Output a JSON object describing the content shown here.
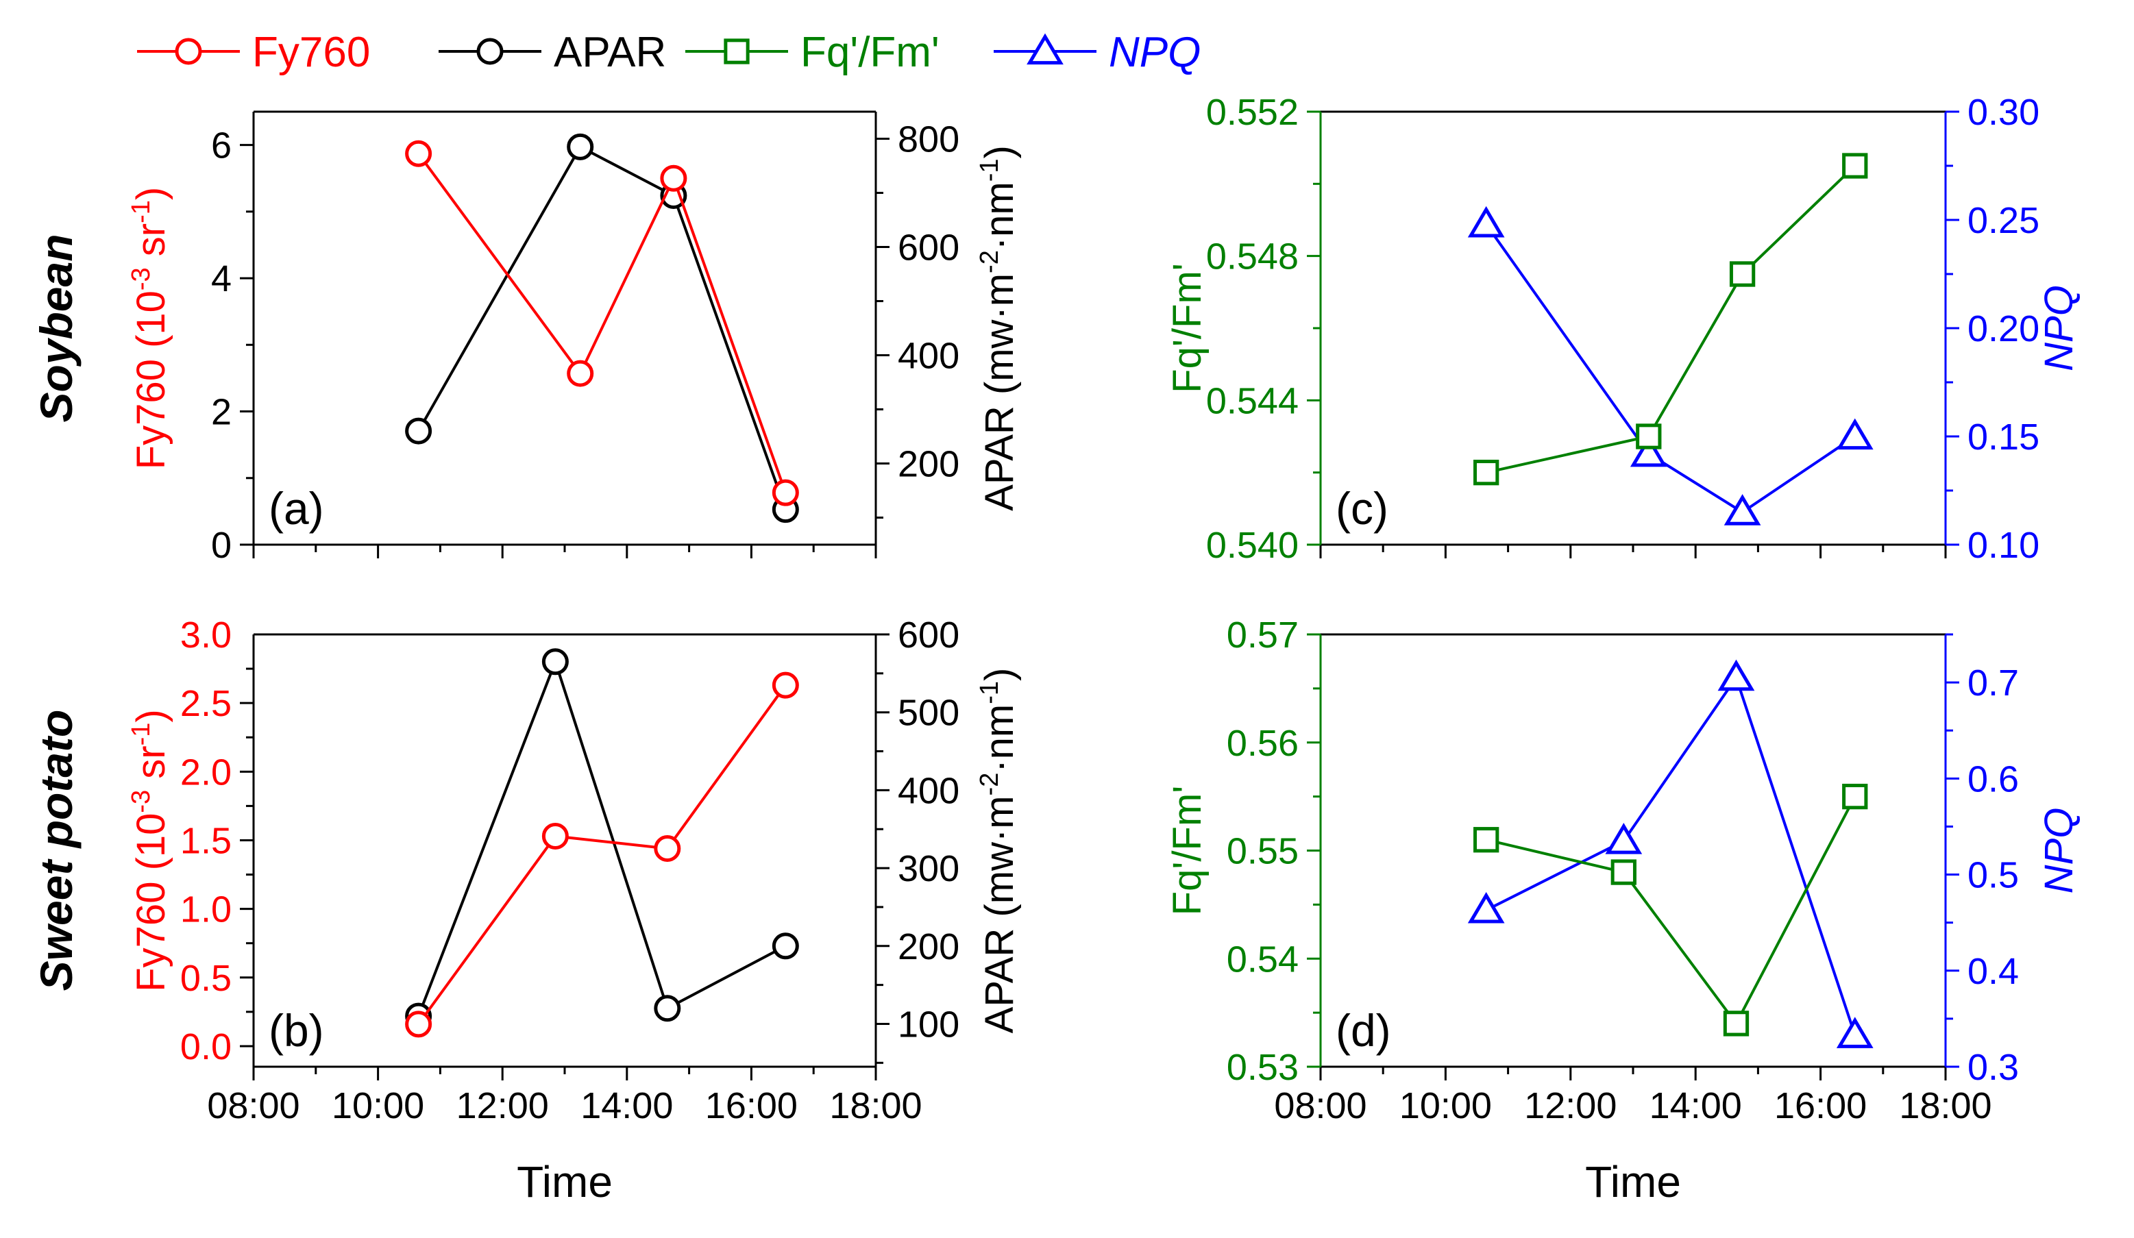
{
  "legend": [
    {
      "label": "Fy760",
      "color": "#ff0000",
      "marker": "circle",
      "italic": false
    },
    {
      "label": "APAR",
      "color": "#000000",
      "marker": "circle",
      "italic": false
    },
    {
      "label": "Fq'/Fm'",
      "color": "#008000",
      "marker": "square",
      "italic": false
    },
    {
      "label": "NPQ",
      "color": "#0000ff",
      "marker": "triangle",
      "italic": true
    }
  ],
  "row_labels": {
    "top": "Soybean",
    "bottom": "Sweet potato"
  },
  "colors": {
    "fy760": "#ff0000",
    "apar": "#000000",
    "fq": "#008000",
    "npq": "#0000ff"
  },
  "chart_data": [
    {
      "id": "a",
      "panel_label": "(a)",
      "type": "line",
      "xlabel": "",
      "xticks": [
        "08:00",
        "10:00",
        "12:00",
        "14:00",
        "16:00",
        "18:00"
      ],
      "xlim": [
        8,
        18
      ],
      "left_axis": {
        "label_main": "Fy760 (10",
        "label_sup": "-3",
        "label_end": " sr",
        "label_sup2": "-1",
        "label_tail": ")",
        "ticks": [
          "0",
          "2",
          "4",
          "6"
        ],
        "ylim": [
          0,
          6.5
        ],
        "tick_values": [
          0,
          2,
          4,
          6
        ],
        "minor_step": 1
      },
      "right_axis": {
        "label_main": "APAR (mw·m",
        "label_sup": "-2",
        "label_mid": "·nm",
        "label_sup2": "-1",
        "label_tail": ")",
        "ticks": [
          "200",
          "400",
          "600",
          "800"
        ],
        "ylim": [
          50,
          850
        ],
        "tick_values": [
          200,
          400,
          600,
          800
        ],
        "minor_step": 100
      },
      "series": [
        {
          "name": "Fy760",
          "axis": "left",
          "x": [
            10.65,
            13.25,
            14.75,
            16.55
          ],
          "y": [
            5.87,
            2.57,
            5.5,
            0.78
          ]
        },
        {
          "name": "APAR",
          "axis": "right",
          "x": [
            10.65,
            13.25,
            14.75,
            16.55
          ],
          "y": [
            260,
            785,
            695,
            115
          ]
        }
      ]
    },
    {
      "id": "b",
      "panel_label": "(b)",
      "type": "line",
      "xlabel": "Time",
      "xticks": [
        "08:00",
        "10:00",
        "12:00",
        "14:00",
        "16:00",
        "18:00"
      ],
      "xlim": [
        8,
        18
      ],
      "left_axis": {
        "label_main": "Fy760 (10",
        "label_sup": "-3",
        "label_end": " sr",
        "label_sup2": "-1",
        "label_tail": ")",
        "ticks": [
          "0.0",
          "0.5",
          "1.0",
          "1.5",
          "2.0",
          "2.5",
          "3.0"
        ],
        "ylim": [
          -0.15,
          3.0
        ],
        "tick_values": [
          0,
          0.5,
          1,
          1.5,
          2,
          2.5,
          3
        ],
        "minor_step": 0.25
      },
      "right_axis": {
        "label_main": "APAR (mw·m",
        "label_sup": "-2",
        "label_mid": "·nm",
        "label_sup2": "-1",
        "label_tail": ")",
        "ticks": [
          "100",
          "200",
          "300",
          "400",
          "500",
          "600"
        ],
        "ylim": [
          45,
          600
        ],
        "tick_values": [
          100,
          200,
          300,
          400,
          500,
          600
        ],
        "minor_step": 50
      },
      "series": [
        {
          "name": "Fy760",
          "axis": "left",
          "x": [
            10.65,
            12.85,
            14.65,
            16.55
          ],
          "y": [
            0.16,
            1.53,
            1.44,
            2.63
          ]
        },
        {
          "name": "APAR",
          "axis": "right",
          "x": [
            10.65,
            12.85,
            14.65,
            16.55
          ],
          "y": [
            110,
            565,
            120,
            200
          ]
        }
      ]
    },
    {
      "id": "c",
      "panel_label": "(c)",
      "type": "line",
      "xlabel": "",
      "xticks": [
        "08:00",
        "10:00",
        "12:00",
        "14:00",
        "16:00",
        "18:00"
      ],
      "xlim": [
        8,
        18
      ],
      "left_axis": {
        "label_main": "Fq'/Fm'",
        "ticks": [
          "0.540",
          "0.544",
          "0.548",
          "0.552"
        ],
        "ylim": [
          0.54,
          0.552
        ],
        "tick_values": [
          0.54,
          0.544,
          0.548,
          0.552
        ],
        "minor_step": 0.002
      },
      "right_axis": {
        "label_main": "NPQ",
        "italic": true,
        "ticks": [
          "0.10",
          "0.15",
          "0.20",
          "0.25",
          "0.30"
        ],
        "ylim": [
          0.1,
          0.3
        ],
        "tick_values": [
          0.1,
          0.15,
          0.2,
          0.25,
          0.3
        ],
        "minor_step": 0.025
      },
      "series": [
        {
          "name": "Fq'/Fm'",
          "axis": "left",
          "x": [
            10.65,
            13.25,
            14.75,
            16.55
          ],
          "y": [
            0.542,
            0.543,
            0.5475,
            0.5505
          ]
        },
        {
          "name": "NPQ",
          "axis": "right",
          "x": [
            10.65,
            13.25,
            14.75,
            16.55
          ],
          "y": [
            0.248,
            0.142,
            0.115,
            0.15
          ]
        }
      ]
    },
    {
      "id": "d",
      "panel_label": "(d)",
      "type": "line",
      "xlabel": "Time",
      "xticks": [
        "08:00",
        "10:00",
        "12:00",
        "14:00",
        "16:00",
        "18:00"
      ],
      "xlim": [
        8,
        18
      ],
      "left_axis": {
        "label_main": "Fq'/Fm'",
        "ticks": [
          "0.53",
          "0.54",
          "0.55",
          "0.56",
          "0.57"
        ],
        "ylim": [
          0.53,
          0.57
        ],
        "tick_values": [
          0.53,
          0.54,
          0.55,
          0.56,
          0.57
        ],
        "minor_step": 0.005
      },
      "right_axis": {
        "label_main": "NPQ",
        "italic": true,
        "ticks": [
          "0.3",
          "0.4",
          "0.5",
          "0.6",
          "0.7"
        ],
        "ylim": [
          0.3,
          0.75
        ],
        "tick_values": [
          0.3,
          0.4,
          0.5,
          0.6,
          0.7
        ],
        "minor_step": 0.05
      },
      "series": [
        {
          "name": "Fq'/Fm'",
          "axis": "left",
          "x": [
            10.65,
            12.85,
            14.65,
            16.55
          ],
          "y": [
            0.551,
            0.548,
            0.534,
            0.555
          ]
        },
        {
          "name": "NPQ",
          "axis": "right",
          "x": [
            10.65,
            12.85,
            14.65,
            16.55
          ],
          "y": [
            0.463,
            0.535,
            0.705,
            0.333
          ]
        }
      ]
    }
  ]
}
